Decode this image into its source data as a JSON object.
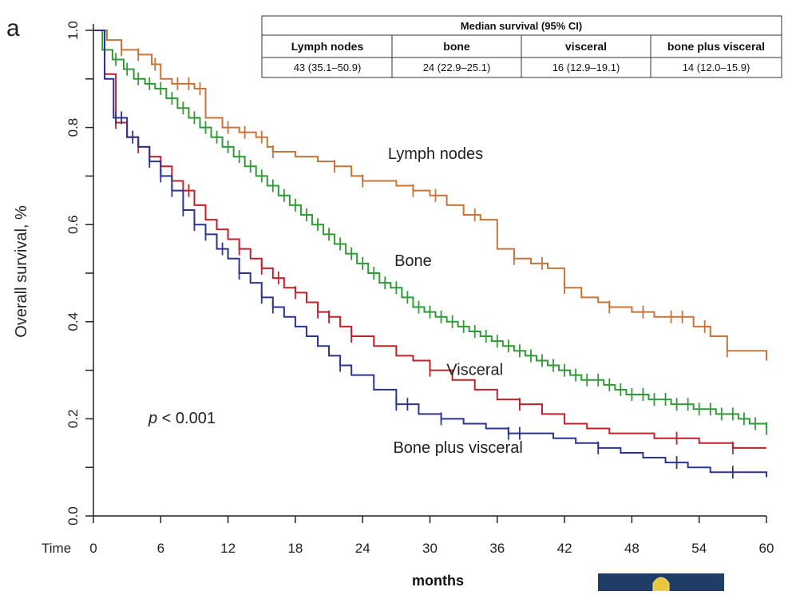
{
  "panel_letter": "a",
  "chart_data": {
    "type": "line",
    "step": true,
    "xlabel": "months",
    "ylabel": "Overall survival, %",
    "x_axis_prefix": "Time",
    "xlim": [
      0,
      60
    ],
    "ylim": [
      0,
      1.0
    ],
    "xticks": [
      0,
      6,
      12,
      18,
      24,
      30,
      36,
      42,
      48,
      54,
      60
    ],
    "yticks": [
      "0.0",
      "0.2",
      "0.4",
      "0.6",
      "0.8",
      "1.0"
    ],
    "grid": false,
    "annotation": {
      "italic": "p",
      "rest": " < 0.001"
    },
    "series": [
      {
        "name": "Lymph nodes",
        "color": "#c8733a",
        "x": [
          0,
          1.2,
          2.5,
          4.0,
          5.2,
          6.0,
          7.0,
          8.0,
          9.0,
          10.0,
          11.5,
          13.0,
          14.5,
          15.5,
          16.0,
          18.0,
          20.0,
          21.5,
          23.0,
          24.0,
          26.0,
          27.0,
          28.5,
          30.0,
          31.5,
          33.0,
          34.5,
          36.0,
          37.5,
          39.0,
          40.5,
          42.0,
          43.5,
          45.0,
          46.0,
          48.0,
          50.0,
          52.5,
          53.5,
          55.0,
          56.5,
          60.0
        ],
        "y": [
          1.0,
          0.98,
          0.96,
          0.95,
          0.93,
          0.9,
          0.89,
          0.89,
          0.88,
          0.82,
          0.8,
          0.79,
          0.78,
          0.76,
          0.75,
          0.74,
          0.73,
          0.72,
          0.7,
          0.69,
          0.69,
          0.68,
          0.67,
          0.66,
          0.64,
          0.62,
          0.61,
          0.55,
          0.53,
          0.52,
          0.51,
          0.47,
          0.45,
          0.44,
          0.43,
          0.42,
          0.41,
          0.41,
          0.39,
          0.37,
          0.34,
          0.32
        ],
        "censor_x": [
          2.5,
          4.0,
          5.5,
          7.5,
          8.5,
          9.5,
          12.0,
          13.5,
          15.0,
          16.0,
          21.5,
          24.0,
          28.5,
          30.5,
          34.0,
          37.5,
          40.0,
          42.0,
          46.0,
          49.0,
          51.5,
          52.5,
          54.5,
          56.5
        ]
      },
      {
        "name": "Bone",
        "color": "#2f9a36",
        "x": [
          0,
          0.8,
          1.7,
          2.7,
          3.6,
          4.6,
          5.5,
          6.5,
          7.5,
          8.5,
          9.5,
          10.5,
          11.5,
          12.5,
          13.5,
          14.5,
          15.5,
          16.5,
          17.5,
          18.5,
          19.5,
          20.5,
          21.5,
          22.5,
          23.5,
          24.5,
          25.5,
          26.5,
          27.5,
          28.5,
          29.5,
          30.5,
          31.5,
          32.5,
          33.5,
          34.5,
          35.5,
          36.5,
          37.5,
          38.5,
          39.5,
          40.5,
          41.5,
          42.5,
          43.5,
          44.5,
          45.5,
          46.5,
          47.5,
          48.5,
          49.5,
          50.5,
          51.5,
          52.5,
          53.5,
          54.5,
          55.5,
          56.5,
          57.5,
          58.5,
          59.5,
          60.0
        ],
        "y": [
          1.0,
          0.96,
          0.94,
          0.92,
          0.9,
          0.89,
          0.88,
          0.86,
          0.84,
          0.82,
          0.8,
          0.78,
          0.76,
          0.74,
          0.72,
          0.7,
          0.68,
          0.66,
          0.64,
          0.62,
          0.6,
          0.58,
          0.56,
          0.54,
          0.52,
          0.5,
          0.48,
          0.47,
          0.45,
          0.43,
          0.42,
          0.41,
          0.4,
          0.39,
          0.38,
          0.37,
          0.36,
          0.35,
          0.34,
          0.33,
          0.32,
          0.31,
          0.3,
          0.29,
          0.28,
          0.28,
          0.27,
          0.26,
          0.25,
          0.25,
          0.24,
          0.24,
          0.23,
          0.23,
          0.22,
          0.22,
          0.21,
          0.21,
          0.2,
          0.19,
          0.19,
          0.18
        ],
        "censor_x": [
          1.0,
          2.0,
          3.0,
          4.0,
          5.0,
          6.0,
          7.0,
          8.0,
          9.0,
          10.0,
          11.0,
          12.0,
          13.0,
          14.0,
          15.0,
          16.0,
          17.0,
          18.0,
          19.0,
          20.0,
          21.0,
          22.0,
          23.0,
          24.0,
          25.0,
          26.0,
          27.0,
          28.0,
          29.0,
          30.0,
          31.0,
          32.0,
          33.0,
          34.0,
          35.0,
          36.0,
          37.0,
          38.0,
          39.0,
          40.0,
          41.0,
          42.0,
          43.0,
          44.0,
          45.0,
          46.0,
          47.0,
          48.0,
          49.0,
          50.0,
          51.0,
          52.0,
          53.0,
          54.0,
          55.0,
          56.0,
          57.0,
          58.0,
          59.0,
          60.0
        ]
      },
      {
        "name": "Visceral",
        "color": "#c3202a",
        "x": [
          0,
          1.0,
          2.0,
          3.0,
          4.0,
          5.0,
          6.0,
          7.0,
          8.0,
          9.0,
          10.0,
          11.0,
          12.0,
          13.0,
          14.0,
          15.0,
          16.0,
          17.0,
          18.0,
          19.0,
          20.0,
          21.0,
          22.0,
          23.0,
          25.0,
          27.0,
          28.5,
          30.0,
          32.0,
          34.0,
          36.0,
          38.0,
          40.0,
          42.0,
          44.0,
          46.0,
          48.0,
          50.0,
          52.0,
          54.0,
          57.0,
          60.0
        ],
        "y": [
          1.0,
          0.91,
          0.81,
          0.78,
          0.76,
          0.74,
          0.72,
          0.69,
          0.67,
          0.64,
          0.61,
          0.59,
          0.57,
          0.55,
          0.53,
          0.51,
          0.49,
          0.47,
          0.46,
          0.44,
          0.42,
          0.41,
          0.39,
          0.37,
          0.35,
          0.33,
          0.32,
          0.3,
          0.28,
          0.26,
          0.24,
          0.23,
          0.21,
          0.19,
          0.18,
          0.17,
          0.17,
          0.16,
          0.16,
          0.15,
          0.14,
          0.14
        ],
        "censor_x": [
          2.0,
          4.0,
          6.0,
          8.5,
          13.0,
          15.0,
          16.5,
          18.0,
          20.0,
          21.0,
          23.0,
          30.0,
          38.0,
          52.0,
          57.0
        ]
      },
      {
        "name": "Bone plus visceral",
        "color": "#2b3590",
        "x": [
          0,
          1.0,
          1.8,
          3.0,
          4.0,
          5.0,
          6.0,
          7.0,
          8.0,
          9.0,
          10.0,
          11.0,
          12.0,
          13.0,
          14.0,
          15.0,
          16.0,
          17.0,
          18.0,
          19.0,
          20.0,
          21.0,
          22.0,
          23.0,
          25.0,
          27.0,
          29.0,
          31.0,
          33.0,
          35.0,
          37.0,
          39.0,
          41.0,
          43.0,
          45.0,
          47.0,
          49.0,
          51.0,
          53.0,
          55.0,
          57.0,
          60.0
        ],
        "y": [
          1.0,
          0.9,
          0.82,
          0.78,
          0.76,
          0.73,
          0.7,
          0.67,
          0.63,
          0.6,
          0.58,
          0.55,
          0.53,
          0.5,
          0.48,
          0.45,
          0.43,
          0.41,
          0.39,
          0.37,
          0.35,
          0.33,
          0.31,
          0.29,
          0.26,
          0.23,
          0.21,
          0.2,
          0.19,
          0.18,
          0.17,
          0.17,
          0.16,
          0.15,
          0.14,
          0.13,
          0.12,
          0.11,
          0.1,
          0.09,
          0.09,
          0.08
        ],
        "censor_x": [
          2.0,
          2.5,
          3.5,
          5.0,
          6.0,
          7.0,
          8.0,
          9.0,
          10.0,
          11.5,
          13.0,
          15.0,
          16.0,
          22.0,
          27.0,
          28.0,
          31.0,
          37.0,
          38.0,
          45.0,
          52.0,
          57.0
        ]
      }
    ],
    "series_labels": [
      {
        "text": "Lymph nodes",
        "x": 30.5,
        "y": 0.735
      },
      {
        "text": "Bone",
        "x": 28.5,
        "y": 0.515
      },
      {
        "text": "Visceral",
        "x": 34.0,
        "y": 0.29
      },
      {
        "text": "Bone plus visceral",
        "x": 32.5,
        "y": 0.13
      }
    ],
    "table": {
      "title": "Median survival (95% CI)",
      "headers": [
        "Lymph nodes",
        "bone",
        "visceral",
        "bone plus visceral"
      ],
      "cells": [
        "43 (35.1–50.9)",
        "24 (22.9–25.1)",
        "16 (12.9–19.1)",
        "14 (12.0–15.9)"
      ]
    }
  }
}
